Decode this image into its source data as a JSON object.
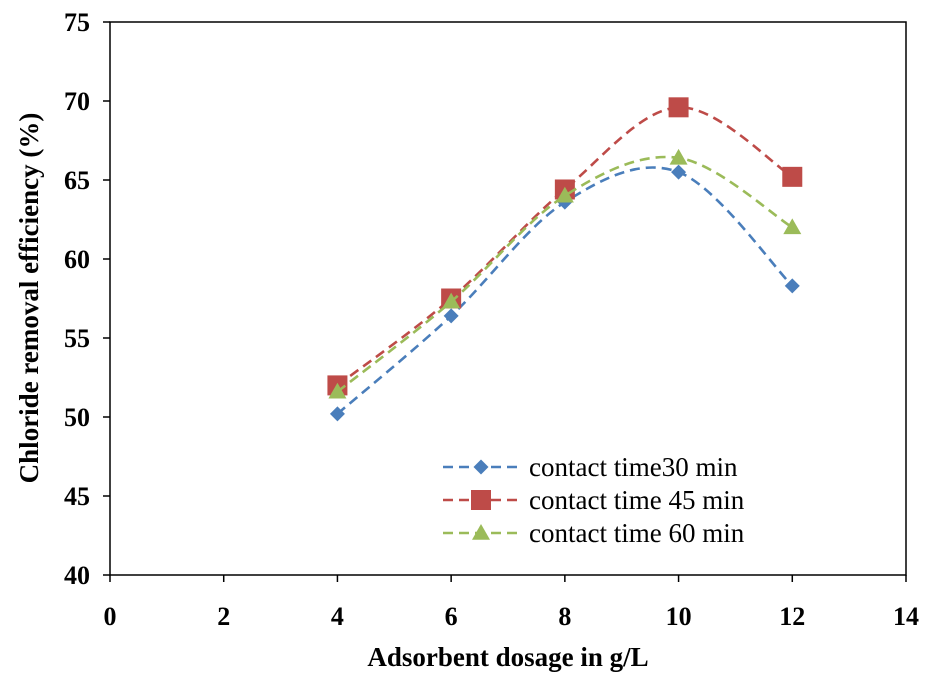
{
  "chart_data": {
    "type": "scatter",
    "title": "",
    "xlabel": "Adsorbent dosage in g/L",
    "ylabel": "Chloride removal efficiency (%)",
    "xlim": [
      0,
      14
    ],
    "ylim": [
      40,
      75
    ],
    "x_ticks": [
      0,
      2,
      4,
      6,
      8,
      10,
      12,
      14
    ],
    "y_ticks": [
      40,
      45,
      50,
      55,
      60,
      65,
      70,
      75
    ],
    "x_tick_labels": [
      "0",
      "2",
      "4",
      "6",
      "8",
      "10",
      "12",
      "14"
    ],
    "y_tick_labels": [
      "40",
      "45",
      "50",
      "55",
      "60",
      "65",
      "70",
      "75"
    ],
    "grid": false,
    "legend_position": "bottom-right",
    "x": [
      4,
      6,
      8,
      10,
      12
    ],
    "series": [
      {
        "name": "contact time30 min",
        "values": [
          50.2,
          56.4,
          63.6,
          65.5,
          58.3
        ],
        "color": "#4A7EBB",
        "marker": "diamond",
        "line": "dashed-smooth"
      },
      {
        "name": "contact time 45 min",
        "values": [
          52.0,
          57.5,
          64.4,
          69.6,
          65.2
        ],
        "color": "#BE4B48",
        "marker": "square",
        "line": "dashed-smooth"
      },
      {
        "name": "contact time 60 min",
        "values": [
          51.6,
          57.3,
          64.0,
          66.4,
          62.0
        ],
        "color": "#9BBB59",
        "marker": "triangle",
        "line": "dashed-smooth"
      }
    ]
  }
}
